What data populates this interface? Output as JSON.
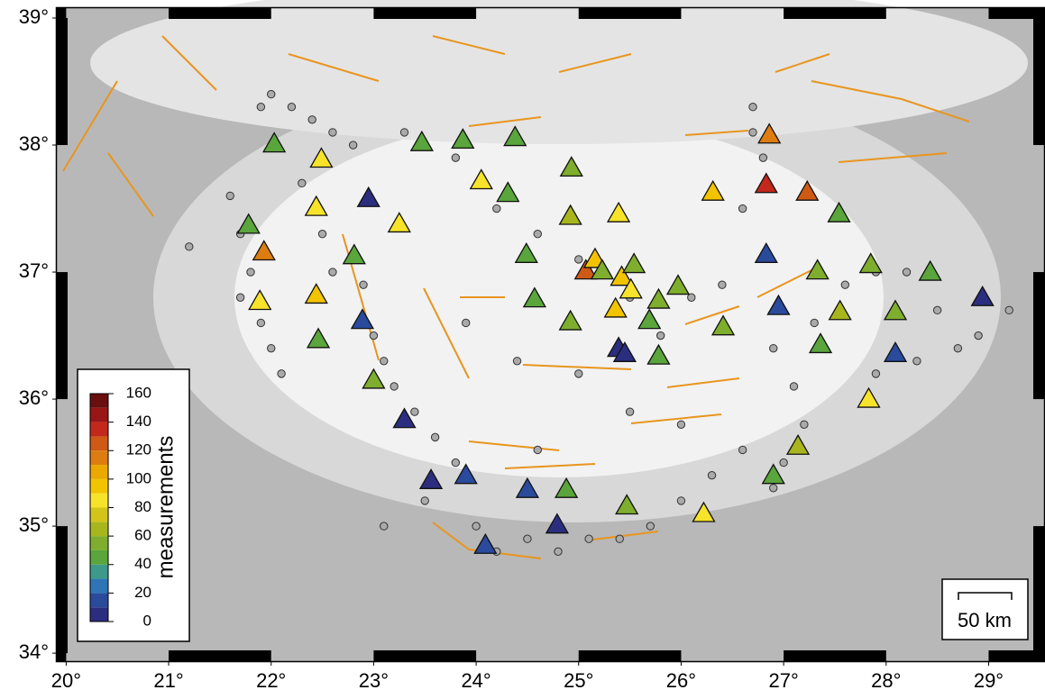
{
  "map": {
    "xlim": [
      19.9,
      29.55
    ],
    "ylim": [
      33.93,
      39.085
    ],
    "xticks": [
      {
        "value": 20,
        "label": "20°"
      },
      {
        "value": 21,
        "label": "21°"
      },
      {
        "value": 22,
        "label": "22°"
      },
      {
        "value": 23,
        "label": "23°"
      },
      {
        "value": 24,
        "label": "24°"
      },
      {
        "value": 25,
        "label": "25°"
      },
      {
        "value": 26,
        "label": "26°"
      },
      {
        "value": 27,
        "label": "27°"
      },
      {
        "value": 28,
        "label": "28°"
      },
      {
        "value": 29,
        "label": "29°"
      }
    ],
    "yticks": [
      {
        "value": 34,
        "label": "34°"
      },
      {
        "value": 35,
        "label": "35°"
      },
      {
        "value": 36,
        "label": "36°"
      },
      {
        "value": 37,
        "label": "37°"
      },
      {
        "value": 38,
        "label": "38°"
      },
      {
        "value": 39,
        "label": "39°"
      }
    ],
    "stations": {
      "lon": [
        22.03,
        22.49,
        23.47,
        23.87,
        24.38,
        24.93,
        24.05,
        24.31,
        22.95,
        22.44,
        24.92,
        25.39,
        23.25,
        21.78,
        26.31,
        26.86,
        26.83,
        27.23,
        27.54,
        21.93,
        22.81,
        24.49,
        26.83,
        25.07,
        25.16,
        25.23,
        25.42,
        25.54,
        25.51,
        25.97,
        27.33,
        27.85,
        28.43,
        28.94,
        21.89,
        22.44,
        22.89,
        24.57,
        25.36,
        25.78,
        25.69,
        24.92,
        26.41,
        26.95,
        27.55,
        28.09,
        27.36,
        28.09,
        22.46,
        25.39,
        25.45,
        25.78,
        23.0,
        27.83,
        23.3,
        27.14,
        23.56,
        23.9,
        24.5,
        24.88,
        26.9,
        25.47,
        26.22,
        24.79,
        24.09
      ],
      "lat": [
        38.01,
        37.89,
        38.02,
        38.04,
        38.06,
        37.82,
        37.72,
        37.62,
        37.58,
        37.51,
        37.44,
        37.46,
        37.38,
        37.37,
        37.63,
        38.08,
        37.69,
        37.63,
        37.46,
        37.16,
        37.13,
        37.14,
        37.14,
        37.01,
        37.1,
        37.01,
        36.96,
        37.06,
        36.86,
        36.89,
        37.01,
        37.06,
        37.0,
        36.8,
        36.77,
        36.82,
        36.62,
        36.79,
        36.71,
        36.78,
        36.62,
        36.61,
        36.57,
        36.73,
        36.69,
        36.69,
        36.43,
        36.36,
        36.47,
        36.4,
        36.36,
        36.34,
        36.15,
        36.0,
        35.84,
        35.63,
        35.36,
        35.4,
        35.29,
        35.29,
        35.4,
        35.16,
        35.1,
        35.01,
        34.85
      ],
      "count": [
        45,
        85,
        45,
        45,
        45,
        55,
        85,
        45,
        5,
        85,
        65,
        85,
        85,
        45,
        95,
        115,
        135,
        125,
        45,
        115,
        45,
        45,
        15,
        125,
        95,
        55,
        95,
        55,
        85,
        55,
        55,
        55,
        45,
        5,
        85,
        95,
        15,
        45,
        95,
        55,
        45,
        55,
        55,
        15,
        65,
        55,
        45,
        15,
        45,
        5,
        5,
        45,
        55,
        85,
        5,
        65,
        5,
        15,
        15,
        45,
        45,
        55,
        85,
        5,
        15
      ]
    },
    "events": [
      [
        21.6,
        37.6
      ],
      [
        21.7,
        37.3
      ],
      [
        21.8,
        37.0
      ],
      [
        21.7,
        36.8
      ],
      [
        21.9,
        36.6
      ],
      [
        22.0,
        36.4
      ],
      [
        22.1,
        36.2
      ],
      [
        21.9,
        38.3
      ],
      [
        22.0,
        38.4
      ],
      [
        22.2,
        38.3
      ],
      [
        22.4,
        38.2
      ],
      [
        22.6,
        38.1
      ],
      [
        22.3,
        37.7
      ],
      [
        22.5,
        37.3
      ],
      [
        22.6,
        37.0
      ],
      [
        22.9,
        36.9
      ],
      [
        23.0,
        36.5
      ],
      [
        23.1,
        36.3
      ],
      [
        23.2,
        36.1
      ],
      [
        23.4,
        35.9
      ],
      [
        23.6,
        35.7
      ],
      [
        23.8,
        35.5
      ],
      [
        24.0,
        35.0
      ],
      [
        24.2,
        34.8
      ],
      [
        24.5,
        34.9
      ],
      [
        24.8,
        34.8
      ],
      [
        25.1,
        34.9
      ],
      [
        25.4,
        34.9
      ],
      [
        25.7,
        35.0
      ],
      [
        26.0,
        35.2
      ],
      [
        26.3,
        35.4
      ],
      [
        26.6,
        35.6
      ],
      [
        26.9,
        35.3
      ],
      [
        27.0,
        35.5
      ],
      [
        27.2,
        35.8
      ],
      [
        27.1,
        36.1
      ],
      [
        26.9,
        36.4
      ],
      [
        27.3,
        36.6
      ],
      [
        27.6,
        36.9
      ],
      [
        27.9,
        37.0
      ],
      [
        28.2,
        37.0
      ],
      [
        28.5,
        36.7
      ],
      [
        28.7,
        36.4
      ],
      [
        28.3,
        36.3
      ],
      [
        27.9,
        36.2
      ],
      [
        26.7,
        38.3
      ],
      [
        26.7,
        38.1
      ],
      [
        26.8,
        37.9
      ],
      [
        26.6,
        37.5
      ],
      [
        26.4,
        36.9
      ],
      [
        26.1,
        36.8
      ],
      [
        25.8,
        36.5
      ],
      [
        25.5,
        36.8
      ],
      [
        25.0,
        37.1
      ],
      [
        24.6,
        37.3
      ],
      [
        24.2,
        37.5
      ],
      [
        23.8,
        37.9
      ],
      [
        23.3,
        38.1
      ],
      [
        22.8,
        38.0
      ],
      [
        23.9,
        36.6
      ],
      [
        24.4,
        36.3
      ],
      [
        25.0,
        36.2
      ],
      [
        25.5,
        35.9
      ],
      [
        26.0,
        35.8
      ],
      [
        24.6,
        35.6
      ],
      [
        23.5,
        35.2
      ],
      [
        23.1,
        35.0
      ],
      [
        28.9,
        36.5
      ],
      [
        29.2,
        36.7
      ],
      [
        21.2,
        37.2
      ]
    ],
    "colorbar": {
      "label": "measurements",
      "lim": [
        0,
        160
      ],
      "ticks": [
        0,
        20,
        40,
        60,
        80,
        100,
        120,
        140,
        160
      ],
      "colors": [
        "#2b2e7e",
        "#2a4a9c",
        "#2f74b5",
        "#3d9a8a",
        "#5aa53c",
        "#7fae2e",
        "#a8b61e",
        "#d3c41a",
        "#f7e32a",
        "#f2c400",
        "#eba800",
        "#dd7d10",
        "#cf5a16",
        "#c2281b",
        "#9a1515",
        "#6a0f0f"
      ]
    },
    "scale_bar": {
      "label": "50 km"
    }
  }
}
